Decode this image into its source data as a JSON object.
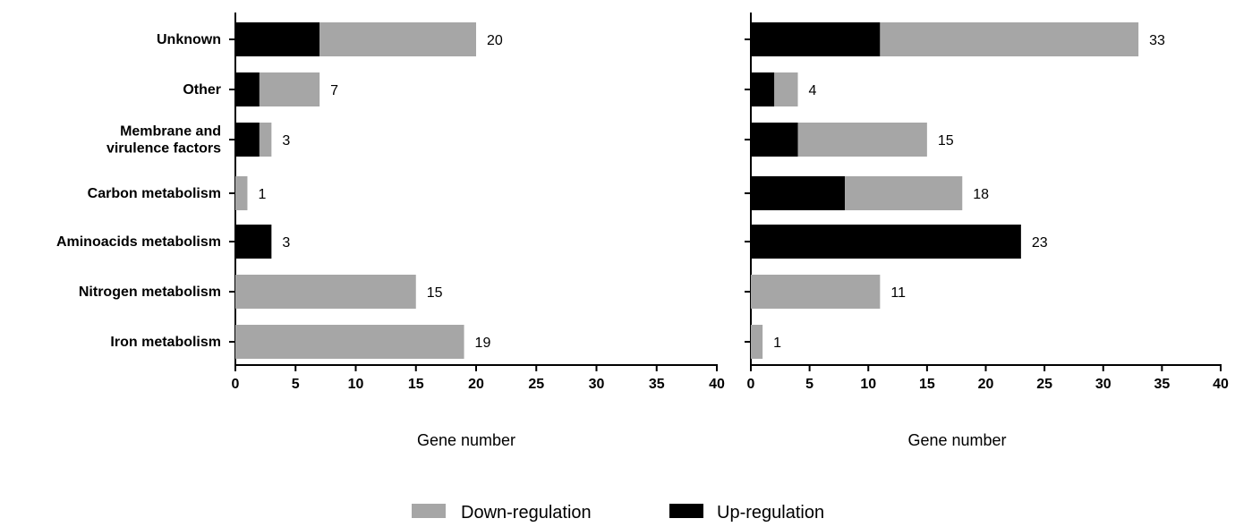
{
  "colors": {
    "down": "#a6a6a6",
    "up": "#000000",
    "axis": "#000000"
  },
  "legend": [
    {
      "key": "down",
      "label": "Down-regulation"
    },
    {
      "key": "up",
      "label": "Up-regulation"
    }
  ],
  "chart_data": [
    {
      "type": "bar",
      "orientation": "horizontal",
      "stacked": true,
      "title": "",
      "categories": [
        "Unknown",
        "Other",
        "Membrane and virulence factors",
        "Carbon metabolism",
        "Aminoacids metabolism",
        "Nitrogen metabolism",
        "Iron metabolism"
      ],
      "category_labels": [
        [
          "Unknown"
        ],
        [
          "Other"
        ],
        [
          "Membrane and",
          "virulence factors"
        ],
        [
          "Carbon metabolism"
        ],
        [
          "Aminoacids metabolism"
        ],
        [
          "Nitrogen metabolism"
        ],
        [
          "Iron metabolism"
        ]
      ],
      "series": [
        {
          "name": "Up-regulation",
          "key": "up",
          "values": [
            7,
            2,
            2,
            0,
            3,
            0,
            0
          ]
        },
        {
          "name": "Down-regulation",
          "key": "down",
          "values": [
            13,
            5,
            1,
            1,
            0,
            15,
            19
          ]
        }
      ],
      "totals": [
        20,
        7,
        3,
        1,
        3,
        15,
        19
      ],
      "xlabel": "Gene number",
      "ylabel": "",
      "xlim": [
        0,
        40
      ],
      "xticks": [
        0,
        5,
        10,
        15,
        20,
        25,
        30,
        35,
        40
      ],
      "grid": false
    },
    {
      "type": "bar",
      "orientation": "horizontal",
      "stacked": true,
      "title": "",
      "categories": [
        "Unknown",
        "Other",
        "Membrane and virulence factors",
        "Carbon metabolism",
        "Aminoacids metabolism",
        "Nitrogen metabolism",
        "Iron metabolism"
      ],
      "series": [
        {
          "name": "Up-regulation",
          "key": "up",
          "values": [
            11,
            2,
            4,
            8,
            23,
            0,
            0
          ]
        },
        {
          "name": "Down-regulation",
          "key": "down",
          "values": [
            22,
            2,
            11,
            10,
            0,
            11,
            1
          ]
        }
      ],
      "totals": [
        33,
        4,
        15,
        18,
        23,
        11,
        1
      ],
      "xlabel": "Gene number",
      "ylabel": "",
      "xlim": [
        0,
        40
      ],
      "xticks": [
        0,
        5,
        10,
        15,
        20,
        25,
        30,
        35,
        40
      ],
      "grid": false
    }
  ]
}
